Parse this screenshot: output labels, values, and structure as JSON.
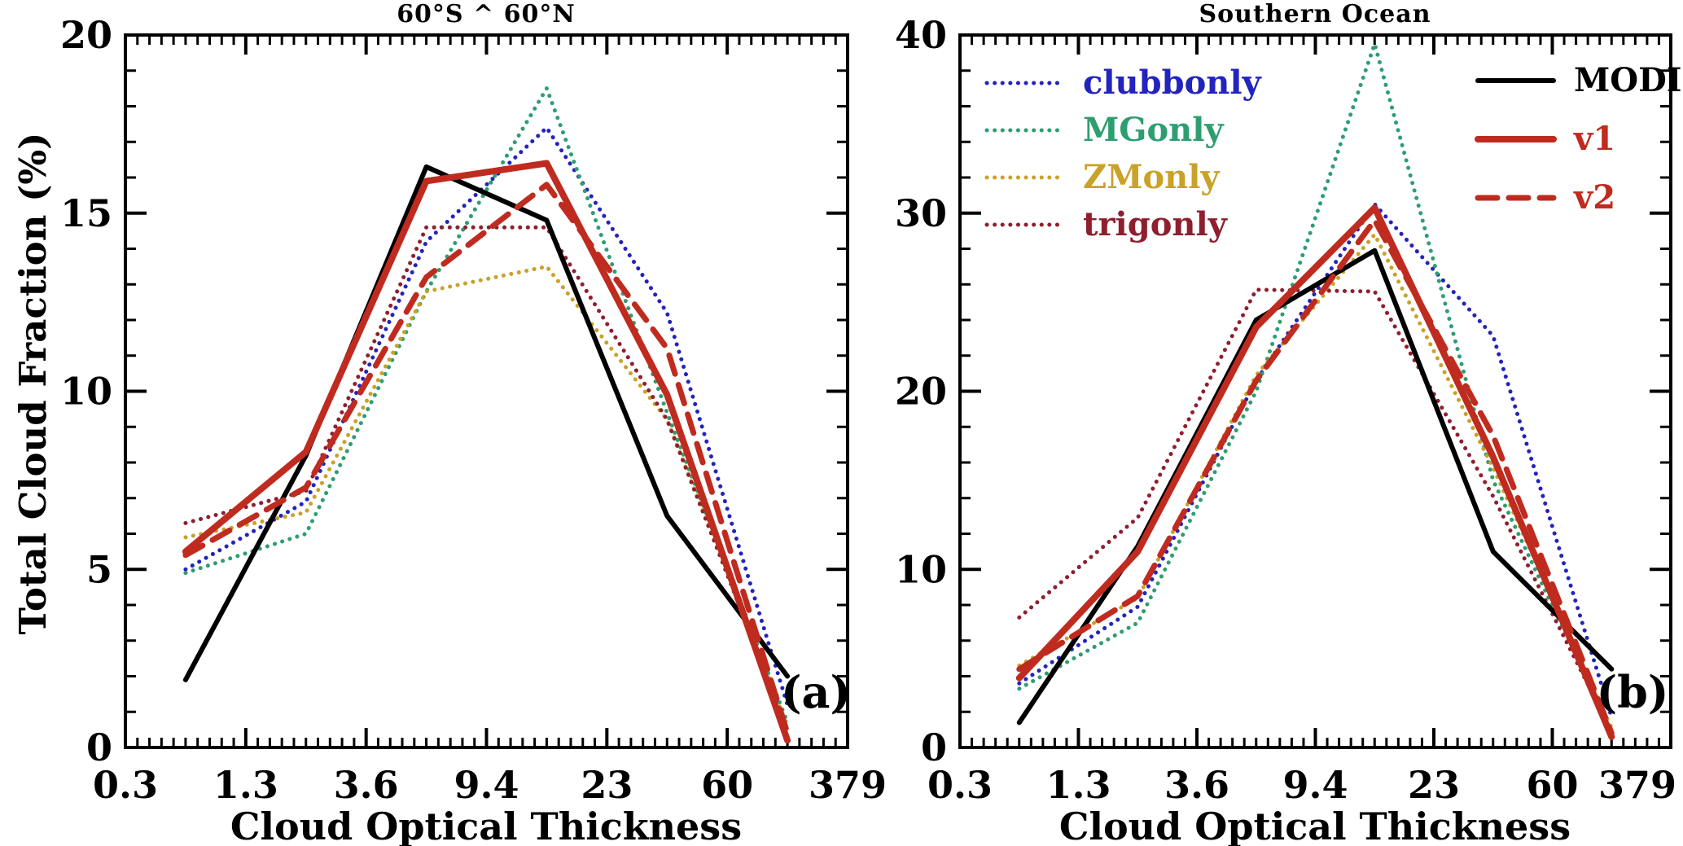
{
  "figure": {
    "background": "#ffffff",
    "ylabel": "Total Cloud Fraction (%)",
    "xlabel": "Cloud Optical Thickness"
  },
  "chart_data": [
    {
      "type": "line",
      "title": "60°S ^ 60°N",
      "panel_label": "(a)",
      "xlabel": "Cloud Optical Thickness",
      "ylabel": "Total Cloud Fraction (%)",
      "x_axis": {
        "tick_labels": [
          "0.3",
          "1.3",
          "3.6",
          "9.4",
          "23",
          "60",
          "379"
        ],
        "scale": "binned",
        "bin_centers": [
          0.79,
          2.16,
          5.8,
          14.7,
          37.1,
          151
        ]
      },
      "y_axis": {
        "lim": [
          0,
          20
        ],
        "ticks": [
          0,
          5,
          10,
          15,
          20
        ],
        "tick_labels": [
          "0",
          "5",
          "10",
          "15",
          "20"
        ],
        "minor_step": 1
      },
      "grid": false,
      "series": [
        {
          "name": "clubbonly",
          "color": "#2323bd",
          "style": "dotted",
          "width": 5,
          "values": [
            5.0,
            6.9,
            14.2,
            17.4,
            12.2,
            1.2
          ]
        },
        {
          "name": "MGonly",
          "color": "#2e9e70",
          "style": "dotted",
          "width": 5,
          "values": [
            4.9,
            6.0,
            12.8,
            18.5,
            9.4,
            0.7
          ]
        },
        {
          "name": "ZMonly",
          "color": "#c9a227",
          "style": "dotted",
          "width": 5,
          "values": [
            5.9,
            6.6,
            12.8,
            13.5,
            9.2,
            0.6
          ]
        },
        {
          "name": "trigonly",
          "color": "#8e1f2e",
          "style": "dotted",
          "width": 5,
          "values": [
            6.3,
            7.2,
            14.6,
            14.6,
            9.2,
            0.5
          ]
        },
        {
          "name": "MODIS",
          "color": "#000000",
          "style": "solid",
          "width": 6,
          "values": [
            1.9,
            8.2,
            16.3,
            14.8,
            6.5,
            2.0
          ]
        },
        {
          "name": "v1",
          "color": "#bf2b1f",
          "style": "solid",
          "width": 8,
          "values": [
            5.5,
            8.3,
            15.9,
            16.4,
            9.9,
            0.2
          ]
        },
        {
          "name": "v2",
          "color": "#bf2b1f",
          "style": "dashed",
          "width": 7,
          "values": [
            5.4,
            7.3,
            13.2,
            15.8,
            11.2,
            0.4
          ]
        }
      ]
    },
    {
      "type": "line",
      "title": "Southern Ocean",
      "panel_label": "(b)",
      "xlabel": "Cloud Optical Thickness",
      "ylabel": "Total Cloud Fraction (%)",
      "x_axis": {
        "tick_labels": [
          "0.3",
          "1.3",
          "3.6",
          "9.4",
          "23",
          "60",
          "379"
        ],
        "scale": "binned",
        "bin_centers": [
          0.79,
          2.16,
          5.8,
          14.7,
          37.1,
          151
        ]
      },
      "y_axis": {
        "lim": [
          0,
          40
        ],
        "ticks": [
          0,
          10,
          20,
          30,
          40
        ],
        "tick_labels": [
          "0",
          "10",
          "20",
          "30",
          "40"
        ],
        "minor_step": 2
      },
      "grid": false,
      "series": [
        {
          "name": "clubbonly",
          "color": "#2323bd",
          "style": "dotted",
          "width": 5,
          "values": [
            3.6,
            7.9,
            20.6,
            30.5,
            23.1,
            1.7
          ]
        },
        {
          "name": "MGonly",
          "color": "#2e9e70",
          "style": "dotted",
          "width": 5,
          "values": [
            3.3,
            7.0,
            20.0,
            39.5,
            15.0,
            0.9
          ]
        },
        {
          "name": "ZMonly",
          "color": "#c9a227",
          "style": "dotted",
          "width": 5,
          "values": [
            4.6,
            8.4,
            20.9,
            28.8,
            15.7,
            1.1
          ]
        },
        {
          "name": "trigonly",
          "color": "#8e1f2e",
          "style": "dotted",
          "width": 5,
          "values": [
            7.3,
            12.9,
            25.7,
            25.6,
            14.1,
            0.9
          ]
        },
        {
          "name": "MODIS",
          "color": "#000000",
          "style": "solid",
          "width": 6,
          "values": [
            1.4,
            11.3,
            24.0,
            27.9,
            11.0,
            4.4
          ]
        },
        {
          "name": "v1",
          "color": "#bf2b1f",
          "style": "solid",
          "width": 8,
          "values": [
            3.9,
            11.0,
            23.6,
            30.3,
            16.3,
            0.6
          ]
        },
        {
          "name": "v2",
          "color": "#bf2b1f",
          "style": "dashed",
          "width": 7,
          "values": [
            4.4,
            8.5,
            20.6,
            29.6,
            17.5,
            0.8
          ]
        }
      ],
      "legend": {
        "position": "upper-left",
        "columns": [
          {
            "items": [
              "clubbonly",
              "MGonly",
              "ZMonly",
              "trigonly"
            ]
          },
          {
            "items": [
              "MODIS",
              "v1",
              "v2"
            ]
          }
        ]
      }
    }
  ]
}
